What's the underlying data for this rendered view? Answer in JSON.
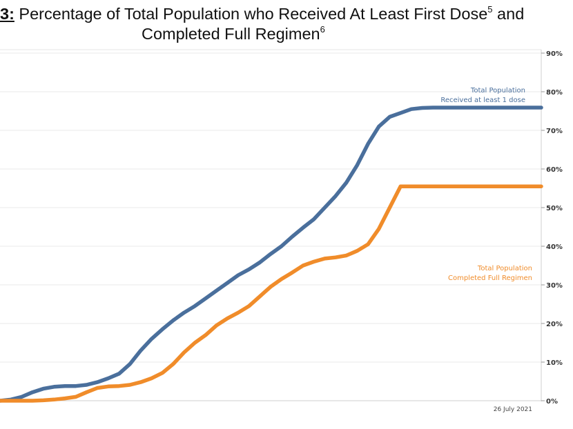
{
  "title": {
    "figure_number": "3:",
    "line1_text": " Percentage of Total Population who Received At Least First Dose",
    "sup1": "5",
    "line1_tail": " and",
    "line2_text": "Completed Full Regimen",
    "sup2": "6"
  },
  "date_note": "26 July 2021",
  "colors": {
    "first_dose": "#4a6f9c",
    "full_regimen": "#f08c2a",
    "grid": "#e9e9e9",
    "axis": "#cfcfcf"
  },
  "chart_data": {
    "type": "line",
    "ylim": [
      0,
      90
    ],
    "ytick_values": [
      0,
      10,
      20,
      30,
      40,
      50,
      60,
      70,
      80,
      90
    ],
    "ytick_labels": [
      "0%",
      "10%",
      "20%",
      "30%",
      "40%",
      "50%",
      "60%",
      "70%",
      "80%",
      "90%"
    ],
    "grid": true,
    "x": [
      0,
      2,
      4,
      6,
      8,
      10,
      12,
      14,
      16,
      18,
      20,
      22,
      24,
      26,
      28,
      30,
      32,
      34,
      36,
      38,
      40,
      42,
      44,
      46,
      48,
      50,
      52,
      54,
      56,
      58,
      60,
      62,
      64,
      66,
      68,
      70,
      72,
      74,
      76,
      78,
      80,
      82,
      84,
      86,
      88,
      90,
      92,
      94,
      96,
      98,
      100
    ],
    "series": [
      {
        "name": "Total Population Received at least 1 dose",
        "label_lines": [
          "Total Population",
          "Received at least 1 dose"
        ],
        "values": [
          0.0,
          0.3,
          1.0,
          2.2,
          3.1,
          3.6,
          3.8,
          3.8,
          4.1,
          4.8,
          5.8,
          7.0,
          9.5,
          13.0,
          16.0,
          18.5,
          20.8,
          22.8,
          24.5,
          26.5,
          28.5,
          30.5,
          32.5,
          34.0,
          35.8,
          38.0,
          40.0,
          42.5,
          44.8,
          47.0,
          50.0,
          53.0,
          56.5,
          61.0,
          66.5,
          71.0,
          73.5,
          74.5,
          75.5,
          75.8,
          75.9,
          75.9,
          75.9,
          75.9,
          75.9,
          75.9,
          75.9,
          75.9,
          75.9,
          75.9,
          75.9
        ]
      },
      {
        "name": "Total Population Completed Full Regimen",
        "label_lines": [
          "Total Population",
          "Completed Full Regimen"
        ],
        "values": [
          0.0,
          0.0,
          0.0,
          0.0,
          0.1,
          0.3,
          0.6,
          1.0,
          2.2,
          3.3,
          3.7,
          3.8,
          4.1,
          4.8,
          5.8,
          7.2,
          9.5,
          12.5,
          15.0,
          17.0,
          19.5,
          21.3,
          22.8,
          24.5,
          27.0,
          29.5,
          31.5,
          33.2,
          35.0,
          36.0,
          36.8,
          37.1,
          37.6,
          38.8,
          40.5,
          44.5,
          50.0,
          55.5,
          55.5,
          55.5,
          55.5,
          55.5,
          55.5,
          55.5,
          55.5,
          55.5,
          55.5,
          55.5,
          55.5,
          55.5,
          55.5
        ]
      }
    ]
  }
}
